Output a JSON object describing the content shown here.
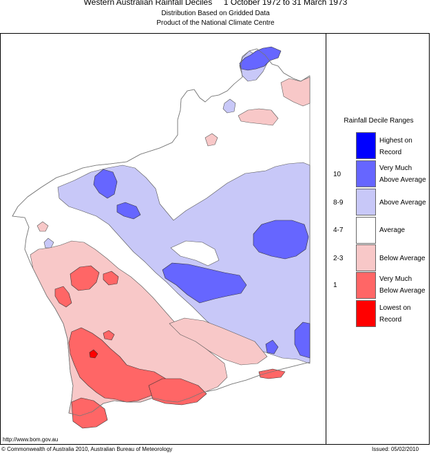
{
  "header": {
    "title": "Western Australian Rainfall Deciles     1 October 1972 to 31 March 1973",
    "subtitle_1": "Distribution Based on Gridded Data",
    "subtitle_2": "Product of the National Climate Centre"
  },
  "legend": {
    "title": "Rainfall Decile Ranges",
    "items": [
      {
        "label_1": "Highest on",
        "label_2": "Record",
        "code": "",
        "color": "#0000ff"
      },
      {
        "label_1": "Very Much",
        "label_2": "Above Average",
        "code": "10",
        "color": "#6666ff"
      },
      {
        "label_1": "Above Average",
        "label_2": "",
        "code": "8-9",
        "color": "#c8c8f8"
      },
      {
        "label_1": "Average",
        "label_2": "",
        "code": "4-7",
        "color": "#ffffff"
      },
      {
        "label_1": "Below Average",
        "label_2": "",
        "code": "2-3",
        "color": "#f8c8c8"
      },
      {
        "label_1": "Very Much",
        "label_2": "Below Average",
        "code": "1",
        "color": "#ff6666"
      },
      {
        "label_1": "Lowest on",
        "label_2": "Record",
        "code": "",
        "color": "#ff0000"
      }
    ]
  },
  "footer": {
    "url": "http://www.bom.gov.au",
    "copyright": "© Commonwealth of Australia 2010, Australian Bureau of Meteorology",
    "issued": "Issued: 05/02/2010"
  }
}
